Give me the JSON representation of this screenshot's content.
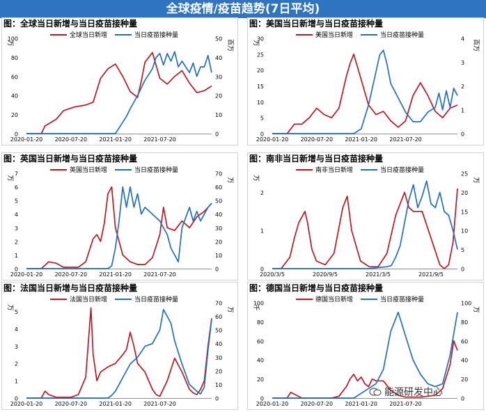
{
  "page_title": "全球疫情/疫苗趋势(7日平均)",
  "watermark": "能源研发中心",
  "colors": {
    "banner": "#2e74c0",
    "cases": "#c0171f",
    "vaccine": "#1f6fc0"
  },
  "chart_data": [
    {
      "type": "line",
      "title": "图：全球当日新增与当日疫苗接种量",
      "left_unit": "万",
      "right_unit": "百万",
      "ylim_left": [
        0,
        100
      ],
      "yticks_left": [
        0,
        20,
        40,
        60,
        80,
        100
      ],
      "ylim_right": [
        0,
        50
      ],
      "yticks_right": [
        0,
        10,
        20,
        30,
        40,
        50
      ],
      "xlim": [
        0,
        25
      ],
      "xticks": [
        {
          "x": 0,
          "label": "2020-01-20"
        },
        {
          "x": 6,
          "label": "2020-07-20"
        },
        {
          "x": 12,
          "label": "2021-01-20"
        },
        {
          "x": 18,
          "label": "2021-07-20"
        }
      ],
      "series": [
        {
          "name": "全球当日新增",
          "axis": "left",
          "x": [
            0,
            2,
            2.5,
            4,
            5,
            6.5,
            8,
            9,
            10,
            11,
            12,
            13,
            14,
            15,
            15.5,
            16,
            17,
            18,
            19,
            20,
            21,
            22,
            23,
            24,
            25
          ],
          "values": [
            0,
            0,
            8,
            15,
            24,
            28,
            30,
            33,
            58,
            68,
            73,
            60,
            44,
            38,
            55,
            75,
            85,
            58,
            52,
            60,
            66,
            53,
            43,
            45,
            50
          ]
        },
        {
          "name": "当日疫苗接种量",
          "axis": "right",
          "x": [
            0,
            11,
            12,
            12.5,
            13,
            13.5,
            14,
            15,
            16,
            17,
            17.5,
            18,
            18.5,
            19,
            19.5,
            20,
            20.5,
            21,
            22,
            22.5,
            23,
            23.5,
            24,
            24.5,
            25
          ],
          "values": [
            0,
            0,
            0,
            3,
            6,
            9,
            13,
            20,
            28,
            34,
            40,
            42,
            36,
            42,
            38,
            43,
            35,
            38,
            32,
            37,
            30,
            35,
            35,
            41,
            32
          ]
        }
      ]
    },
    {
      "type": "line",
      "title": "图：美国当日新增与当日疫苗接种量",
      "left_unit": "万",
      "right_unit": "百万",
      "ylim_left": [
        0,
        30
      ],
      "yticks_left": [
        0,
        5,
        10,
        15,
        20,
        25,
        30
      ],
      "ylim_right": [
        0,
        4
      ],
      "yticks_right": [
        0,
        0.5,
        1,
        1.5,
        2,
        2.5,
        3,
        3.5,
        4
      ],
      "ytick_labels_right": [
        "0",
        "",
        "1",
        "",
        "2",
        "",
        "3",
        "",
        "4"
      ],
      "xlim": [
        0,
        25
      ],
      "xticks": [
        {
          "x": 0,
          "label": "2020-01-20"
        },
        {
          "x": 6,
          "label": "2020-07-20"
        },
        {
          "x": 12,
          "label": "2021-01-20"
        },
        {
          "x": 18,
          "label": "2021-07-20"
        }
      ],
      "series": [
        {
          "name": "美国当日新增",
          "axis": "left",
          "x": [
            0,
            2,
            3,
            4,
            5,
            6,
            7,
            8,
            9,
            10,
            10.5,
            11,
            12,
            13,
            14,
            15,
            16,
            17,
            18,
            19,
            20,
            21,
            22,
            23,
            24,
            25
          ],
          "values": [
            0,
            0,
            3,
            3,
            5,
            8,
            6,
            5,
            8,
            18,
            22,
            25,
            17,
            9,
            6,
            7,
            4,
            2,
            4,
            12,
            16,
            12,
            7,
            5,
            8,
            9
          ]
        },
        {
          "name": "当日疫苗接种量",
          "axis": "right",
          "x": [
            0,
            11,
            12,
            13,
            14,
            14.5,
            15,
            15.5,
            16,
            17,
            18,
            19,
            20,
            21,
            22,
            22.5,
            23,
            23.5,
            24,
            24.5,
            25
          ],
          "values": [
            0,
            0,
            0.2,
            1.2,
            2.6,
            3.3,
            3.5,
            2.9,
            2.1,
            1.5,
            0.9,
            0.5,
            0.5,
            0.9,
            1.1,
            1.7,
            1.0,
            1.8,
            1.1,
            1.9,
            1.6
          ]
        }
      ]
    },
    {
      "type": "line",
      "title": "图：英国当日新增与当日疫苗接种量",
      "left_unit": "万",
      "right_unit": "万",
      "ylim_left": [
        0,
        7
      ],
      "yticks_left": [
        0,
        1,
        2,
        3,
        4,
        5,
        6,
        7
      ],
      "ylim_right": [
        0,
        70
      ],
      "yticks_right": [
        0,
        10,
        20,
        30,
        40,
        50,
        60,
        70
      ],
      "xlim": [
        0,
        25
      ],
      "xticks": [
        {
          "x": 0,
          "label": "2020-01-20"
        },
        {
          "x": 6,
          "label": "2020-07-20"
        },
        {
          "x": 12,
          "label": "2021-01-20"
        },
        {
          "x": 18,
          "label": "2021-07-20"
        }
      ],
      "series": [
        {
          "name": "英国当日新增",
          "axis": "left",
          "x": [
            0,
            2,
            3,
            4,
            5,
            7,
            8,
            9,
            9.5,
            10,
            10.5,
            11,
            11.5,
            12,
            13,
            14,
            15,
            16,
            17,
            18,
            18.5,
            19,
            20,
            21,
            22,
            23,
            24,
            25
          ],
          "values": [
            0,
            0,
            0.5,
            0.4,
            0.1,
            0.1,
            0.5,
            2.2,
            2.5,
            2.0,
            3.3,
            5.5,
            6.0,
            3.0,
            1.0,
            0.5,
            0.3,
            0.3,
            0.8,
            2.5,
            4.5,
            3.0,
            2.8,
            3.5,
            3.0,
            3.8,
            4.2,
            4.8
          ]
        },
        {
          "name": "当日疫苗接种量",
          "axis": "right",
          "x": [
            0,
            11,
            11.5,
            12,
            12.5,
            13,
            13.5,
            14,
            14.5,
            15,
            15.5,
            16,
            17,
            18,
            19,
            19.5,
            20,
            20.5,
            21,
            22,
            22.5,
            23,
            23.5,
            24,
            24.5,
            25
          ],
          "values": [
            0,
            0,
            2,
            15,
            35,
            60,
            45,
            60,
            45,
            55,
            40,
            45,
            40,
            35,
            25,
            15,
            10,
            5,
            30,
            45,
            35,
            42,
            35,
            40,
            45,
            48
          ]
        }
      ]
    },
    {
      "type": "line",
      "title": "图：南非当日新增与当日疫苗接种量",
      "left_unit": "万",
      "right_unit": "万",
      "ylim_left": [
        0,
        2.5
      ],
      "yticks_left": [
        0,
        0.5,
        1,
        1.5,
        2,
        2.5
      ],
      "ytick_labels_left": [
        "0",
        "",
        "1",
        "",
        "2",
        ""
      ],
      "ylim_right": [
        0,
        25
      ],
      "yticks_right": [
        0,
        5,
        10,
        15,
        20,
        25
      ],
      "xlim": [
        0,
        21
      ],
      "xticks": [
        {
          "x": 0,
          "label": "2020/3/5"
        },
        {
          "x": 6,
          "label": "2020/9/5"
        },
        {
          "x": 12,
          "label": "2021/3/5"
        },
        {
          "x": 18,
          "label": "2021/9/5"
        }
      ],
      "series": [
        {
          "name": "南非当日新增",
          "axis": "left",
          "x": [
            0,
            1,
            2,
            2.5,
            3,
            3.7,
            4,
            4.5,
            5,
            6,
            7,
            7.5,
            8,
            8.5,
            9,
            10,
            11,
            12,
            13,
            14,
            15,
            15.5,
            16,
            17,
            18,
            19,
            19.5,
            20,
            20.5,
            21
          ],
          "values": [
            0,
            0,
            0.3,
            0.8,
            1.2,
            1.5,
            1.2,
            0.5,
            0.2,
            0.1,
            0.4,
            1.0,
            1.6,
            1.9,
            1.0,
            0.2,
            0.05,
            0.05,
            0.4,
            1.4,
            2.0,
            1.6,
            1.5,
            1.5,
            0.8,
            0.1,
            0,
            0.1,
            0.7,
            2.1
          ]
        },
        {
          "name": "当日疫苗接种量",
          "axis": "right",
          "x": [
            0,
            11,
            12,
            13,
            13.5,
            14,
            14.5,
            15,
            15.5,
            16,
            16.5,
            17,
            17.5,
            18,
            18.5,
            19,
            19.5,
            20,
            20.5,
            21
          ],
          "values": [
            0,
            0,
            0.3,
            0.5,
            0.8,
            3,
            6,
            12,
            18,
            22,
            16,
            19,
            23,
            17,
            16,
            20,
            15,
            14,
            10,
            5
          ]
        }
      ]
    },
    {
      "type": "line",
      "title": "图：法国当日新增与当日疫苗接种量",
      "left_unit": "万",
      "right_unit": "万",
      "ylim_left": [
        0,
        5.5
      ],
      "yticks_left": [
        0,
        0.5,
        1,
        1.5,
        2,
        2.5,
        3,
        3.5,
        4,
        4.5,
        5,
        5.5
      ],
      "ytick_labels_left": [
        "0",
        "",
        "1",
        "",
        "2",
        "",
        "3",
        "",
        "4",
        "",
        "5",
        ""
      ],
      "ylim_right": [
        0,
        70
      ],
      "yticks_right": [
        0,
        10,
        20,
        30,
        40,
        50,
        60,
        70
      ],
      "xlim": [
        0,
        25
      ],
      "xticks": [
        {
          "x": 0,
          "label": "2020-01-20"
        },
        {
          "x": 6,
          "label": "2020-07-20"
        },
        {
          "x": 12,
          "label": "2021-01-20"
        },
        {
          "x": 18,
          "label": "2021-07-20"
        }
      ],
      "series": [
        {
          "name": "法国当日新增",
          "axis": "left",
          "x": [
            0,
            2,
            2.5,
            3,
            4,
            6,
            7,
            8,
            8.7,
            9,
            9.5,
            10,
            11,
            12,
            13,
            13.5,
            14,
            14.5,
            15,
            16,
            17,
            17.5,
            18,
            19,
            20,
            21,
            22,
            22.5,
            23,
            23.5,
            24,
            24.5,
            25
          ],
          "values": [
            0,
            0,
            0.4,
            0.2,
            0.05,
            0.05,
            0.2,
            1.2,
            5.2,
            2.5,
            1.0,
            1.5,
            1.8,
            2.0,
            2.5,
            2.8,
            3.8,
            3.0,
            2.0,
            1.5,
            0.5,
            0.2,
            0.1,
            1.0,
            2.3,
            1.5,
            0.5,
            0.3,
            0.2,
            0.5,
            1.0,
            3.0,
            4.6
          ]
        },
        {
          "name": "当日疫苗接种量",
          "axis": "right",
          "x": [
            0,
            11,
            11.5,
            12,
            13,
            14,
            15,
            16,
            17,
            18,
            18.5,
            19,
            19.5,
            20,
            21,
            22,
            23,
            23.5,
            24,
            24.5,
            25
          ],
          "values": [
            0,
            0,
            2,
            5,
            15,
            25,
            30,
            38,
            40,
            50,
            65,
            60,
            55,
            42,
            25,
            10,
            5,
            3,
            8,
            35,
            58
          ]
        }
      ]
    },
    {
      "type": "line",
      "title": "图：德国当日新增与当日疫苗接种量",
      "left_unit": "千",
      "right_unit": "万",
      "ylim_left": [
        0,
        100
      ],
      "yticks_left": [
        0,
        20,
        40,
        60,
        80,
        100
      ],
      "ylim_right": [
        0,
        100
      ],
      "yticks_right": [
        0,
        20,
        40,
        60,
        80,
        100
      ],
      "xlim": [
        0,
        25
      ],
      "xticks": [
        {
          "x": 0,
          "label": "2020-01-20"
        },
        {
          "x": 6,
          "label": "2020-07-20"
        },
        {
          "x": 12,
          "label": "2021-01-20"
        },
        {
          "x": 18,
          "label": "2021-07-20"
        }
      ],
      "series": [
        {
          "name": "德国当日新增",
          "axis": "left",
          "x": [
            0,
            2,
            2.5,
            3,
            4,
            8,
            9,
            10,
            10.5,
            11,
            11.5,
            12,
            12.5,
            13,
            13.5,
            14,
            15,
            16,
            17,
            18,
            20,
            21,
            22,
            23,
            24,
            24.5,
            25
          ],
          "values": [
            0,
            0,
            6,
            4,
            0,
            0,
            2,
            12,
            20,
            25,
            18,
            22,
            15,
            12,
            20,
            18,
            18,
            8,
            3,
            1,
            1,
            2,
            3,
            10,
            35,
            60,
            50
          ]
        },
        {
          "name": "当日疫苗接种量",
          "axis": "right",
          "x": [
            0,
            11,
            12,
            13,
            14,
            15,
            16,
            17,
            18,
            19,
            20,
            21,
            22,
            23,
            24,
            25
          ],
          "values": [
            0,
            0,
            5,
            10,
            15,
            30,
            70,
            90,
            65,
            40,
            25,
            15,
            12,
            15,
            45,
            90
          ]
        }
      ]
    }
  ]
}
